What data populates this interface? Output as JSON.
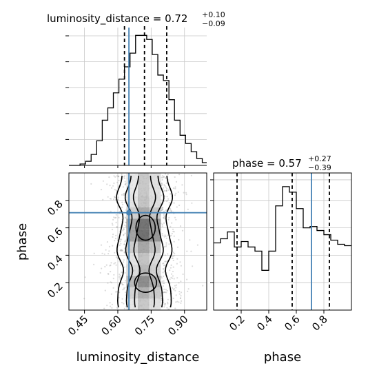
{
  "chart_data": [
    {
      "type": "histogram",
      "panel": "luminosity_distance-marginal",
      "title": {
        "param": "luminosity_distance",
        "value": "0.72",
        "upper": "+0.10",
        "lower": "−0.09"
      },
      "xlim": [
        0.38,
        1.0
      ],
      "bin_edges": [
        0.38,
        0.405,
        0.43,
        0.455,
        0.48,
        0.505,
        0.53,
        0.555,
        0.58,
        0.605,
        0.63,
        0.655,
        0.68,
        0.705,
        0.73,
        0.755,
        0.78,
        0.805,
        0.83,
        0.855,
        0.88,
        0.905,
        0.93,
        0.955,
        0.98,
        1.0
      ],
      "density": [
        0.0,
        0.0,
        0.01,
        0.03,
        0.08,
        0.18,
        0.33,
        0.42,
        0.53,
        0.63,
        0.72,
        0.82,
        0.95,
        0.95,
        0.92,
        0.81,
        0.66,
        0.62,
        0.48,
        0.33,
        0.22,
        0.16,
        0.1,
        0.05,
        0.02
      ],
      "quantiles": [
        0.63,
        0.72,
        0.82
      ],
      "truth": 0.65,
      "grid": true
    },
    {
      "type": "histogram",
      "panel": "phase-marginal",
      "title": {
        "param": "phase",
        "value": "0.57",
        "upper": "+0.27",
        "lower": "−0.39"
      },
      "xlim": [
        0.0,
        1.0
      ],
      "bin_edges": [
        0.0,
        0.05,
        0.1,
        0.15,
        0.2,
        0.25,
        0.3,
        0.35,
        0.4,
        0.45,
        0.5,
        0.55,
        0.6,
        0.65,
        0.7,
        0.75,
        0.8,
        0.85,
        0.9,
        0.95,
        1.0
      ],
      "density": [
        0.49,
        0.52,
        0.57,
        0.46,
        0.5,
        0.46,
        0.43,
        0.29,
        0.43,
        0.76,
        0.9,
        0.86,
        0.74,
        0.6,
        0.61,
        0.58,
        0.55,
        0.51,
        0.48,
        0.47
      ],
      "quantiles": [
        0.17,
        0.57,
        0.84
      ],
      "truth": 0.71,
      "grid": true
    },
    {
      "type": "scatter-density",
      "panel": "joint",
      "xlabel": "luminosity_distance",
      "ylabel": "phase",
      "xlim": [
        0.38,
        1.0
      ],
      "ylim": [
        0.0,
        1.0
      ],
      "x_center": 0.72,
      "x_spread": 0.08,
      "truth": [
        0.65,
        0.71
      ],
      "grid": true
    }
  ],
  "axes": {
    "x_ticks_distance": [
      "0.45",
      "0.60",
      "0.75",
      "0.90"
    ],
    "x_tick_values_distance": [
      0.45,
      0.6,
      0.75,
      0.9
    ],
    "y_ticks_phase": [
      "0.2",
      "0.4",
      "0.6",
      "0.8"
    ],
    "y_tick_values_phase": [
      0.2,
      0.4,
      0.6,
      0.8
    ],
    "x_ticks_phase": [
      "0.2",
      "0.4",
      "0.6",
      "0.8"
    ],
    "x_tick_values_phase": [
      0.2,
      0.4,
      0.6,
      0.8
    ]
  },
  "colors": {
    "truth": "#4682b4",
    "hist": "#000000",
    "grid": "#c8c8c8",
    "points": "#999999"
  }
}
